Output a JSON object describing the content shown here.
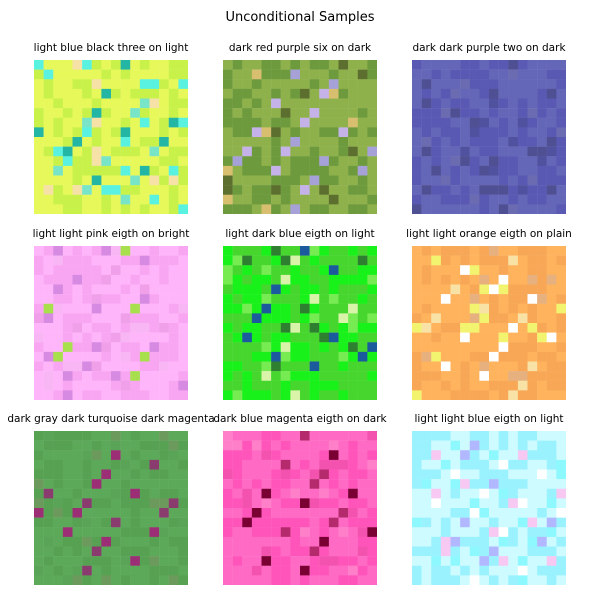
{
  "figure": {
    "title": "Unconditional Samples"
  },
  "panels": [
    {
      "title": "light blue black three on light",
      "palette": [
        "#c8f24a",
        "#e7f85a",
        "#23b6a4",
        "#78e4c8",
        "#f6e1a7",
        "#59f2e0"
      ]
    },
    {
      "title": "dark red purple six on dark",
      "palette": [
        "#6e9a3e",
        "#8fb14c",
        "#c4b2e9",
        "#a6a1d7",
        "#d8bf70",
        "#5d6f2f"
      ]
    },
    {
      "title": "dark dark purple two on dark",
      "palette": [
        "#5959b3",
        "#6466b7",
        "#50519f",
        "#6b6bb2",
        "#4f4f93",
        "#5a5ab5"
      ]
    },
    {
      "title": "light light pink eigth on bright",
      "palette": [
        "#f9a6f2",
        "#ffb5fa",
        "#a7df4d",
        "#f0a0e8",
        "#d68ae1",
        "#f8b6f5"
      ]
    },
    {
      "title": "light dark blue eigth on light",
      "palette": [
        "#19f11b",
        "#46d62e",
        "#1b5b9d",
        "#d9f4a9",
        "#2e7f2f",
        "#77ec52"
      ]
    },
    {
      "title": "light light orange eigth on plain",
      "palette": [
        "#f7a755",
        "#ffb35c",
        "#ffffff",
        "#f9e2a5",
        "#e6b07f",
        "#f2f36f"
      ]
    },
    {
      "title": "dark gray dark turquoise dark magenta",
      "palette": [
        "#57a153",
        "#5ca95a",
        "#8a3c6f",
        "#9b2e74",
        "#6b9a5c",
        "#5aa458"
      ]
    },
    {
      "title": "dark blue magenta eigth on dark",
      "palette": [
        "#ff55ba",
        "#ff6bc4",
        "#7a0034",
        "#b42a6d",
        "#ff7fc9",
        "#f353ae"
      ]
    },
    {
      "title": "light light blue eigth on light",
      "palette": [
        "#9af2ff",
        "#cdfbff",
        "#ffffff",
        "#b2b8ff",
        "#f7c8f2",
        "#8ef8ff"
      ]
    }
  ]
}
